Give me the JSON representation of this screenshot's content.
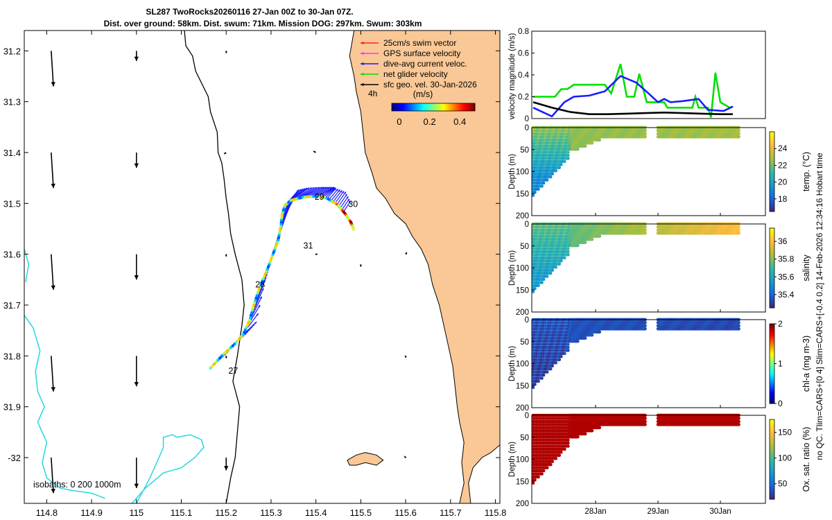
{
  "title": {
    "line1": "SL287 TwoRocks20260116 27-Jan 00Z to 30-Jan 07Z.",
    "line2": "Dist. over ground: 58km. Dist. swum: 71km. Mission DOG: 297km. Swum: 303km"
  },
  "side_note": "no QC. Tlim=CARS+[0 4] Slim=CARS+[-0.4 0.2] 14-Feb-2026 12:34:16 Hobart time",
  "colors": {
    "land": "#f9c896",
    "coast": "#000000",
    "isobath": "#22d8e0",
    "swim": "#ff2020",
    "gps": "#ff33ff",
    "current": "#1a1aff",
    "glider": "#00e000",
    "geo": "#000000"
  },
  "map": {
    "x_ticks": [
      "114.8",
      "114.9",
      "115",
      "115.1",
      "115.2",
      "115.3",
      "115.4",
      "115.5",
      "115.6",
      "115.7",
      "115.8"
    ],
    "x_tick_values": [
      114.8,
      114.9,
      115.0,
      115.1,
      115.2,
      115.3,
      115.4,
      115.5,
      115.6,
      115.7,
      115.8
    ],
    "y_ticks": [
      "31.2",
      "31.3",
      "31.4",
      "31.5",
      "31.6",
      "31.7",
      "31.8",
      "31.9",
      "-32"
    ],
    "y_tick_values": [
      -31.2,
      -31.3,
      -31.4,
      -31.5,
      -31.6,
      -31.7,
      -31.8,
      -31.9,
      -32.0
    ],
    "lon_range": [
      114.75,
      115.81
    ],
    "lat_range": [
      -32.09,
      -31.16
    ],
    "legend": [
      {
        "label": "25cm/s swim vector",
        "color": "#ff2020"
      },
      {
        "label": "GPS surface velocity",
        "color": "#ff33ff"
      },
      {
        "label": "dive-avg current veloc.",
        "color": "#1a1aff"
      },
      {
        "label": "net glider velocity",
        "color": "#00e000"
      },
      {
        "label": "sfc geo. vel. 30-Jan-2026",
        "color": "#000000"
      }
    ],
    "time_step_label": "4h",
    "colorbar": {
      "label": "(m/s)",
      "ticks": [
        "0",
        "0.2",
        "0.4"
      ],
      "tick_values": [
        0,
        0.2,
        0.4
      ],
      "range": [
        -0.05,
        0.5
      ]
    },
    "isobaths_label": "isobaths: 0   200  1000m",
    "day_labels": [
      {
        "text": "27",
        "lon": 115.205,
        "lat": -31.835
      },
      {
        "text": "28",
        "lon": 115.265,
        "lat": -31.665
      },
      {
        "text": "29",
        "lon": 115.397,
        "lat": -31.493
      },
      {
        "text": "30",
        "lon": 115.472,
        "lat": -31.507
      },
      {
        "text": "31",
        "lon": 115.372,
        "lat": -31.589
      }
    ],
    "track": [
      [
        115.165,
        -31.824
      ],
      [
        115.19,
        -31.8
      ],
      [
        115.215,
        -31.78
      ],
      [
        115.238,
        -31.758
      ],
      [
        115.252,
        -31.73
      ],
      [
        115.262,
        -31.7
      ],
      [
        115.272,
        -31.672
      ],
      [
        115.283,
        -31.648
      ],
      [
        115.296,
        -31.62
      ],
      [
        115.306,
        -31.596
      ],
      [
        115.316,
        -31.572
      ],
      [
        115.322,
        -31.545
      ],
      [
        115.325,
        -31.52
      ],
      [
        115.332,
        -31.503
      ],
      [
        115.345,
        -31.494
      ],
      [
        115.37,
        -31.488
      ],
      [
        115.4,
        -31.486
      ],
      [
        115.425,
        -31.49
      ],
      [
        115.447,
        -31.502
      ],
      [
        115.465,
        -31.52
      ],
      [
        115.478,
        -31.537
      ],
      [
        115.485,
        -31.553
      ]
    ],
    "current_arrows": [
      {
        "lon": 115.17,
        "lat": -31.82,
        "dx": 0.03,
        "dy": 0.025
      },
      {
        "lon": 115.19,
        "lat": -31.8,
        "dx": 0.03,
        "dy": 0.025
      },
      {
        "lon": 115.215,
        "lat": -31.78,
        "dx": 0.03,
        "dy": 0.025
      },
      {
        "lon": 115.238,
        "lat": -31.758,
        "dx": 0.03,
        "dy": 0.025
      },
      {
        "lon": 115.252,
        "lat": -31.73,
        "dx": 0.035,
        "dy": 0.08
      },
      {
        "lon": 115.262,
        "lat": -31.7,
        "dx": 0.035,
        "dy": 0.08
      },
      {
        "lon": 115.272,
        "lat": -31.672,
        "dx": 0.035,
        "dy": 0.08
      },
      {
        "lon": 115.283,
        "lat": -31.648,
        "dx": 0.035,
        "dy": 0.08
      },
      {
        "lon": 115.296,
        "lat": -31.62,
        "dx": 0.025,
        "dy": 0.07
      },
      {
        "lon": 115.306,
        "lat": -31.596,
        "dx": 0.025,
        "dy": 0.07
      },
      {
        "lon": 115.316,
        "lat": -31.572,
        "dx": 0.02,
        "dy": 0.06
      },
      {
        "lon": 115.322,
        "lat": -31.545,
        "dx": 0.025,
        "dy": 0.05
      },
      {
        "lon": 115.325,
        "lat": -31.52,
        "dx": 0.03,
        "dy": 0.035
      },
      {
        "lon": 115.332,
        "lat": -31.503,
        "dx": 0.03,
        "dy": 0.03
      },
      {
        "lon": 115.345,
        "lat": -31.494,
        "dx": 0.04,
        "dy": 0.025
      },
      {
        "lon": 115.37,
        "lat": -31.488,
        "dx": 0.045,
        "dy": 0.02
      },
      {
        "lon": 115.4,
        "lat": -31.486,
        "dx": 0.04,
        "dy": 0.018
      },
      {
        "lon": 115.425,
        "lat": -31.49,
        "dx": 0.02,
        "dy": 0.02
      },
      {
        "lon": 115.447,
        "lat": -31.502,
        "dx": 0.02,
        "dy": 0.025
      },
      {
        "lon": 115.465,
        "lat": -31.52,
        "dx": 0.015,
        "dy": 0.02
      }
    ],
    "geo_arrows": [
      {
        "lon": 114.81,
        "lat": -31.2,
        "dx": 0.005,
        "dy": -0.07
      },
      {
        "lon": 115.0,
        "lat": -31.2,
        "dx": 0.0,
        "dy": -0.02
      },
      {
        "lon": 114.81,
        "lat": -31.4,
        "dx": 0.005,
        "dy": -0.07
      },
      {
        "lon": 115.0,
        "lat": -31.4,
        "dx": 0.0,
        "dy": -0.03
      },
      {
        "lon": 114.81,
        "lat": -31.6,
        "dx": 0.005,
        "dy": -0.07
      },
      {
        "lon": 115.0,
        "lat": -31.6,
        "dx": 0.0,
        "dy": -0.05
      },
      {
        "lon": 114.81,
        "lat": -31.8,
        "dx": 0.005,
        "dy": -0.07
      },
      {
        "lon": 115.0,
        "lat": -31.8,
        "dx": 0.0,
        "dy": -0.06
      },
      {
        "lon": 114.81,
        "lat": -32.0,
        "dx": 0.005,
        "dy": -0.07
      },
      {
        "lon": 115.0,
        "lat": -32.0,
        "dx": 0.0,
        "dy": -0.06
      },
      {
        "lon": 115.2,
        "lat": -32.0,
        "dx": 0.0,
        "dy": -0.025
      },
      {
        "lon": 115.2,
        "lat": -31.2,
        "dx": 0.0,
        "dy": -0.005
      },
      {
        "lon": 115.2,
        "lat": -31.4,
        "dx": -0.005,
        "dy": -0.003
      },
      {
        "lon": 115.2,
        "lat": -31.6,
        "dx": 0.0,
        "dy": -0.005
      },
      {
        "lon": 115.2,
        "lat": -31.8,
        "dx": 0.0,
        "dy": -0.005
      },
      {
        "lon": 115.4,
        "lat": -31.4,
        "dx": -0.006,
        "dy": 0.003
      },
      {
        "lon": 115.4,
        "lat": -31.6,
        "dx": 0.004,
        "dy": 0.0
      },
      {
        "lon": 115.5,
        "lat": -31.62,
        "dx": 0.0,
        "dy": -0.005
      },
      {
        "lon": 115.6,
        "lat": -31.6,
        "dx": 0.003,
        "dy": 0.004
      },
      {
        "lon": 115.6,
        "lat": -31.8,
        "dx": 0.0,
        "dy": -0.004
      },
      {
        "lon": 115.6,
        "lat": -32.0,
        "dx": -0.003,
        "dy": 0.003
      }
    ],
    "coast_200m": [
      [
        115.107,
        -31.16
      ],
      [
        115.11,
        -31.19
      ],
      [
        115.125,
        -31.21
      ],
      [
        115.132,
        -31.24
      ],
      [
        115.16,
        -31.29
      ],
      [
        115.165,
        -31.32
      ],
      [
        115.18,
        -31.36
      ],
      [
        115.182,
        -31.4
      ],
      [
        115.19,
        -31.42
      ],
      [
        115.195,
        -31.45
      ],
      [
        115.2,
        -31.49
      ],
      [
        115.205,
        -31.52
      ],
      [
        115.21,
        -31.56
      ],
      [
        115.22,
        -31.6
      ],
      [
        115.235,
        -31.65
      ],
      [
        115.24,
        -31.7
      ],
      [
        115.235,
        -31.74
      ],
      [
        115.225,
        -31.8
      ],
      [
        115.215,
        -31.85
      ],
      [
        115.23,
        -31.9
      ],
      [
        115.225,
        -31.95
      ],
      [
        115.22,
        -32.0
      ],
      [
        115.21,
        -32.04
      ],
      [
        115.2,
        -32.09
      ]
    ],
    "isobath_1000m_a": [
      [
        114.75,
        -31.59
      ],
      [
        114.76,
        -31.62
      ],
      [
        114.753,
        -31.655
      ]
    ],
    "isobath_1000m_b": [
      [
        114.75,
        -31.72
      ],
      [
        114.77,
        -31.745
      ],
      [
        114.785,
        -31.79
      ],
      [
        114.775,
        -31.83
      ],
      [
        114.78,
        -31.87
      ],
      [
        114.795,
        -31.9
      ],
      [
        114.78,
        -31.93
      ],
      [
        114.8,
        -31.97
      ],
      [
        114.79,
        -32.01
      ],
      [
        114.8,
        -32.04
      ],
      [
        114.83,
        -32.06
      ],
      [
        114.86,
        -32.065
      ],
      [
        114.9,
        -32.07
      ],
      [
        114.93,
        -32.08
      ]
    ],
    "isobath_1000m_c": [
      [
        115.0,
        -32.09
      ],
      [
        115.03,
        -32.04
      ],
      [
        115.05,
        -32.0
      ],
      [
        115.06,
        -31.98
      ],
      [
        115.06,
        -31.96
      ],
      [
        115.08,
        -31.955
      ],
      [
        115.09,
        -31.96
      ],
      [
        115.12,
        -31.955
      ],
      [
        115.145,
        -31.965
      ],
      [
        115.15,
        -31.98
      ],
      [
        115.13,
        -32.0
      ],
      [
        115.1,
        -32.02
      ],
      [
        115.06,
        -32.03
      ],
      [
        115.02,
        -32.06
      ],
      [
        114.99,
        -32.09
      ]
    ],
    "land_outline": [
      [
        115.485,
        -31.16
      ],
      [
        115.81,
        -31.16
      ],
      [
        115.81,
        -31.975
      ],
      [
        115.79,
        -31.99
      ],
      [
        115.77,
        -32.0
      ],
      [
        115.75,
        -32.02
      ],
      [
        115.74,
        -32.05
      ],
      [
        115.745,
        -32.09
      ],
      [
        115.72,
        -32.09
      ],
      [
        115.73,
        -32.05
      ],
      [
        115.725,
        -32.01
      ],
      [
        115.73,
        -31.97
      ],
      [
        115.72,
        -31.93
      ],
      [
        115.715,
        -31.9
      ],
      [
        115.71,
        -31.86
      ],
      [
        115.705,
        -31.82
      ],
      [
        115.695,
        -31.78
      ],
      [
        115.685,
        -31.74
      ],
      [
        115.675,
        -31.7
      ],
      [
        115.66,
        -31.66
      ],
      [
        115.65,
        -31.62
      ],
      [
        115.635,
        -31.59
      ],
      [
        115.615,
        -31.565
      ],
      [
        115.6,
        -31.54
      ],
      [
        115.575,
        -31.52
      ],
      [
        115.555,
        -31.49
      ],
      [
        115.535,
        -31.47
      ],
      [
        115.525,
        -31.44
      ],
      [
        115.51,
        -31.4
      ],
      [
        115.505,
        -31.36
      ],
      [
        115.5,
        -31.32
      ],
      [
        115.49,
        -31.28
      ],
      [
        115.485,
        -31.25
      ],
      [
        115.475,
        -31.21
      ],
      [
        115.485,
        -31.16
      ]
    ],
    "island": [
      [
        115.47,
        -32.005
      ],
      [
        115.49,
        -31.995
      ],
      [
        115.51,
        -31.99
      ],
      [
        115.535,
        -31.995
      ],
      [
        115.55,
        -32.005
      ],
      [
        115.535,
        -32.015
      ],
      [
        115.51,
        -32.01
      ],
      [
        115.49,
        -32.015
      ],
      [
        115.475,
        -32.015
      ]
    ]
  },
  "velocity_panel": {
    "ylabel": "velocity magnitude (m/s)",
    "y_ticks": [
      "0",
      "0.2",
      "0.4",
      "0.6",
      "0.8"
    ],
    "y_tick_values": [
      0,
      0.2,
      0.4,
      0.6,
      0.8
    ],
    "ylim": [
      0,
      0.8
    ],
    "series": [
      {
        "name": "net glider velocity",
        "color": "#00e000",
        "points": [
          [
            27.0,
            0.2
          ],
          [
            27.15,
            0.2
          ],
          [
            27.35,
            0.2
          ],
          [
            27.45,
            0.27
          ],
          [
            27.55,
            0.27
          ],
          [
            27.65,
            0.31
          ],
          [
            27.85,
            0.31
          ],
          [
            28.15,
            0.31
          ],
          [
            28.25,
            0.23
          ],
          [
            28.4,
            0.5
          ],
          [
            28.5,
            0.2
          ],
          [
            28.62,
            0.2
          ],
          [
            28.7,
            0.41
          ],
          [
            28.82,
            0.15
          ],
          [
            28.95,
            0.15
          ],
          [
            29.1,
            0.15
          ],
          [
            29.15,
            0.1
          ],
          [
            29.3,
            0.1
          ],
          [
            29.55,
            0.1
          ],
          [
            29.6,
            0.2
          ],
          [
            29.65,
            0.1
          ],
          [
            29.8,
            0.1
          ],
          [
            29.85,
            0.01
          ],
          [
            29.92,
            0.42
          ],
          [
            30.0,
            0.15
          ],
          [
            30.15,
            0.1
          ],
          [
            30.2,
            0.11
          ]
        ]
      },
      {
        "name": "dive-avg current veloc.",
        "color": "#1a1aff",
        "points": [
          [
            27.0,
            0.1
          ],
          [
            27.3,
            0.02
          ],
          [
            27.5,
            0.15
          ],
          [
            27.65,
            0.2
          ],
          [
            27.9,
            0.21
          ],
          [
            28.15,
            0.25
          ],
          [
            28.4,
            0.39
          ],
          [
            28.65,
            0.33
          ],
          [
            28.85,
            0.23
          ],
          [
            29.0,
            0.15
          ],
          [
            29.1,
            0.18
          ],
          [
            29.2,
            0.15
          ],
          [
            29.4,
            0.16
          ],
          [
            29.65,
            0.18
          ],
          [
            29.8,
            0.08
          ],
          [
            30.05,
            0.07
          ],
          [
            30.2,
            0.11
          ]
        ]
      },
      {
        "name": "sfc geo. vel.",
        "color": "#000000",
        "points": [
          [
            27.0,
            0.15
          ],
          [
            27.3,
            0.1
          ],
          [
            27.6,
            0.06
          ],
          [
            27.9,
            0.04
          ],
          [
            28.2,
            0.04
          ],
          [
            28.5,
            0.045
          ],
          [
            28.8,
            0.05
          ],
          [
            29.1,
            0.055
          ],
          [
            29.4,
            0.05
          ],
          [
            29.7,
            0.045
          ],
          [
            30.0,
            0.04
          ],
          [
            30.2,
            0.04
          ]
        ]
      }
    ]
  },
  "sections": [
    {
      "key": "temp",
      "clabel": "temp. (°C)",
      "cticks": [
        "18",
        "20",
        "22",
        "24"
      ],
      "ctick_values": [
        18,
        20,
        22,
        24
      ],
      "crange": [
        16.5,
        26
      ],
      "surface": 22.5,
      "deep": 19,
      "end": 22.8
    },
    {
      "key": "sal",
      "clabel": "salinity",
      "cticks": [
        "35.4",
        "35.6",
        "35.8",
        "36"
      ],
      "ctick_values": [
        35.4,
        35.6,
        35.8,
        36.0
      ],
      "crange": [
        35.25,
        36.15
      ],
      "surface": 35.75,
      "deep": 35.55,
      "end": 36.0
    },
    {
      "key": "chl",
      "clabel": "chl-a (mg m-3)",
      "cticks": [
        "0",
        "1",
        "2"
      ],
      "ctick_values": [
        0,
        1,
        2
      ],
      "crange": [
        0,
        2
      ],
      "surface": 0.2,
      "deep": 0.1,
      "end": 0.15
    },
    {
      "key": "oxy",
      "clabel": "Ox. sat. ratio (%)",
      "cticks": [
        "50",
        "100",
        "150"
      ],
      "ctick_values": [
        50,
        100,
        150
      ],
      "crange": [
        20,
        175
      ],
      "surface": 172,
      "deep": 172,
      "end": 172
    }
  ],
  "section_axis": {
    "ylabel": "Depth (m)",
    "y_ticks": [
      "0",
      "50",
      "100",
      "150",
      "200"
    ],
    "y_tick_values": [
      0,
      50,
      100,
      150,
      200
    ],
    "time_range": [
      27.0,
      30.3
    ],
    "x_ticks": [
      "28Jan",
      "29Jan",
      "30Jan"
    ],
    "x_tick_values": [
      28,
      29,
      30
    ]
  }
}
